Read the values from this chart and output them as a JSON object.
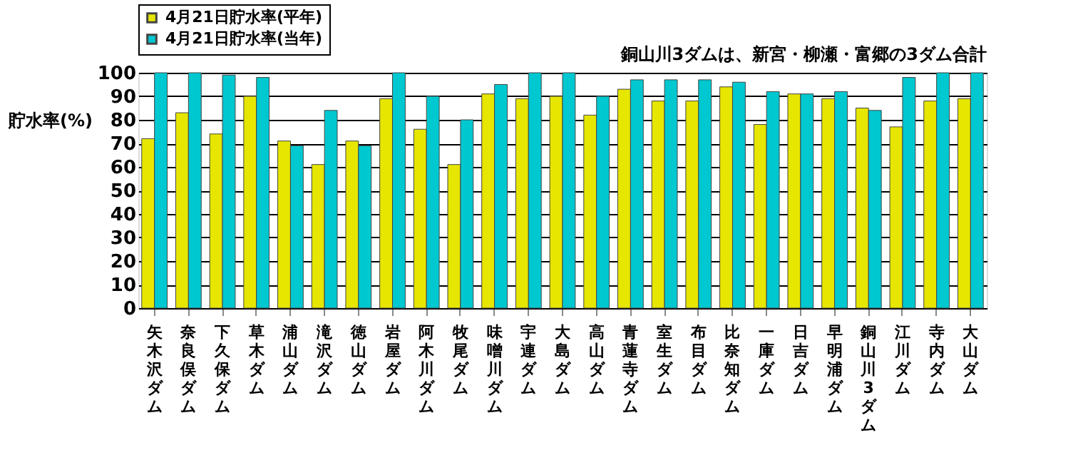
{
  "chart_data": {
    "type": "bar",
    "ylabel": "貯水率(%)",
    "annotations": [
      "銅山川3ダムは、新宮・柳瀬・富郷の3ダム合計"
    ],
    "categories": [
      "矢木沢ダム",
      "奈良俣ダム",
      "下久保ダム",
      "草木ダム",
      "浦山ダム",
      "滝沢ダム",
      "徳山ダム",
      "岩屋ダム",
      "阿木川ダム",
      "牧尾ダム",
      "味噌川ダム",
      "宇連ダム",
      "大島ダム",
      "高山ダム",
      "青蓮寺ダム",
      "室生ダム",
      "布目ダム",
      "比奈知ダム",
      "一庫ダム",
      "日吉ダム",
      "早明浦ダム",
      "銅山川3ダム",
      "江川ダム",
      "寺内ダム",
      "大山ダム"
    ],
    "series": [
      {
        "name": "4月21日貯水率(平年)",
        "color": "#e6e600",
        "values": [
          72,
          83,
          74,
          90,
          71,
          61,
          71,
          89,
          76,
          61,
          91,
          89,
          90,
          82,
          93,
          88,
          88,
          94,
          78,
          91,
          89,
          85,
          77,
          88,
          89
        ]
      },
      {
        "name": "4月21日貯水率(当年)",
        "color": "#00c8d0",
        "values": [
          100,
          100,
          99,
          98,
          69,
          84,
          69,
          100,
          90,
          80,
          95,
          100,
          100,
          90,
          97,
          97,
          97,
          96,
          92,
          91,
          92,
          84,
          98,
          100,
          100
        ]
      }
    ],
    "ylim": [
      0,
      100
    ],
    "yticks": [
      0,
      10,
      20,
      30,
      40,
      50,
      60,
      70,
      80,
      90,
      100
    ],
    "grid": "y",
    "legend": "top left"
  }
}
